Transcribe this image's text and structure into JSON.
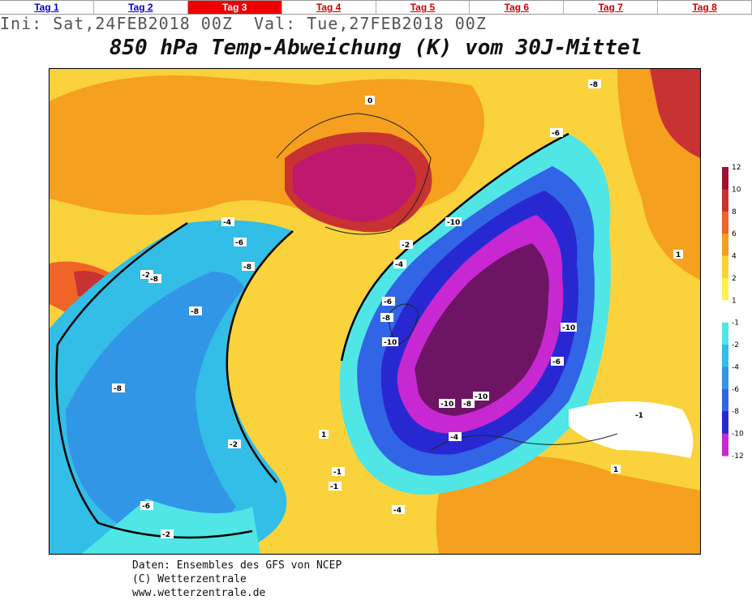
{
  "tabs": [
    {
      "label": "Tag 1",
      "state": "link"
    },
    {
      "label": "Tag 2",
      "state": "link"
    },
    {
      "label": "Tag 3",
      "state": "active"
    },
    {
      "label": "Tag 4",
      "state": "red"
    },
    {
      "label": "Tag 5",
      "state": "red"
    },
    {
      "label": "Tag 6",
      "state": "red"
    },
    {
      "label": "Tag 7",
      "state": "red"
    },
    {
      "label": "Tag 8",
      "state": "red"
    }
  ],
  "header": {
    "ini_line": "Ini: Sat,24FEB2018 00Z  Val: Tue,27FEB2018 00Z",
    "title": "850 hPa Temp-Abweichung (K) vom 30J-Mittel"
  },
  "legend": {
    "labels": [
      "12",
      "10",
      "8",
      "6",
      "4",
      "2",
      "1",
      "-1",
      "-2",
      "-4",
      "-6",
      "-8",
      "-10",
      "-12"
    ],
    "colors": [
      "#9b1432",
      "#c83232",
      "#f06428",
      "#f5a01e",
      "#fad23c",
      "#fff050",
      "#ffffff",
      "#50e6e6",
      "#32bee6",
      "#3296e6",
      "#3264e6",
      "#2828d2",
      "#c828d2"
    ]
  },
  "map": {
    "contour_labels": [
      "-2",
      "-4",
      "-6",
      "-8",
      "-8",
      "-8",
      "-6",
      "-6",
      "-2",
      "-10",
      "-10",
      "-10",
      "-10",
      "-10",
      "-8",
      "-8",
      "-6",
      "-4",
      "-4",
      "-2",
      "-8",
      "-6",
      "-4",
      "-1",
      "-1",
      "0",
      "1",
      "-2",
      "-1",
      "1",
      "1",
      "-8"
    ]
  },
  "footer": {
    "line1": "Daten: Ensembles des GFS von NCEP",
    "line2": "(C) Wetterzentrale",
    "line3": "www.wetterzentrale.de"
  }
}
